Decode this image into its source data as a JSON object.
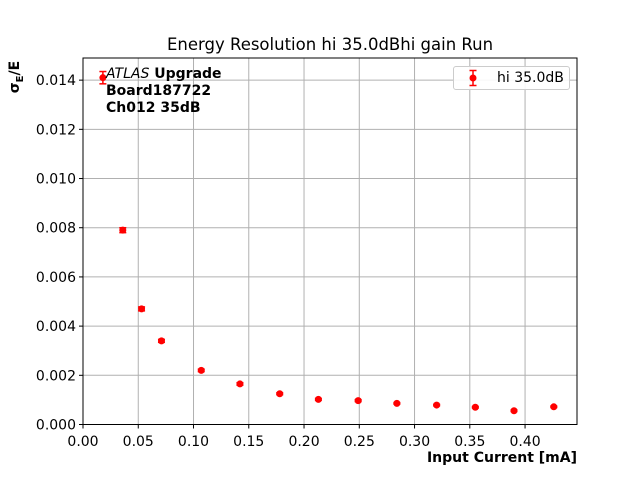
{
  "annotation": {
    "experiment": "ATLAS",
    "line1_rest": " Upgrade",
    "line2": "Board187722",
    "line3": "Ch012 35dB"
  },
  "legend": {
    "label": "hi 35.0dB"
  },
  "colors": {
    "series": "#ff0000",
    "grid": "#b0b0b0",
    "spine": "#000000",
    "legend_border": "#cccccc",
    "text": "#000000",
    "background": "#ffffff"
  },
  "chart_data": {
    "type": "scatter",
    "title": "Energy Resolution hi 35.0dBhi gain Run",
    "xlabel": "Input Current [mA]",
    "ylabel": "σ_E/E",
    "ylabel_parts": {
      "sym": "σ",
      "sub": "E",
      "rest": "/E"
    },
    "grid": true,
    "legend_position": "upper right",
    "xlim": [
      0,
      0.447
    ],
    "ylim": [
      0,
      0.0149
    ],
    "xticks": {
      "values": [
        0,
        0.05,
        0.1,
        0.15,
        0.2,
        0.25,
        0.3,
        0.35,
        0.4
      ],
      "labels": [
        "0.00",
        "0.05",
        "0.10",
        "0.15",
        "0.20",
        "0.25",
        "0.30",
        "0.35",
        "0.40"
      ]
    },
    "yticks": {
      "values": [
        0,
        0.002,
        0.004,
        0.006,
        0.008,
        0.01,
        0.012,
        0.014
      ],
      "labels": [
        "0.000",
        "0.002",
        "0.004",
        "0.006",
        "0.008",
        "0.010",
        "0.012",
        "0.014"
      ]
    },
    "series": [
      {
        "name": "hi 35.0dB",
        "color": "#ff0000",
        "marker": "circle",
        "x": [
          0.018,
          0.036,
          0.053,
          0.071,
          0.107,
          0.142,
          0.178,
          0.213,
          0.249,
          0.284,
          0.32,
          0.355,
          0.39,
          0.426
        ],
        "y": [
          0.0141,
          0.0079,
          0.0047,
          0.0034,
          0.0022,
          0.00165,
          0.00125,
          0.00102,
          0.00097,
          0.00086,
          0.00079,
          0.0007,
          0.00056,
          0.00072
        ],
        "yerr": [
          0.00025,
          0.0001,
          8e-05,
          6e-05,
          5e-05,
          5e-05,
          4e-05,
          4e-05,
          4e-05,
          3e-05,
          3e-05,
          3e-05,
          3e-05,
          3e-05
        ]
      }
    ]
  }
}
